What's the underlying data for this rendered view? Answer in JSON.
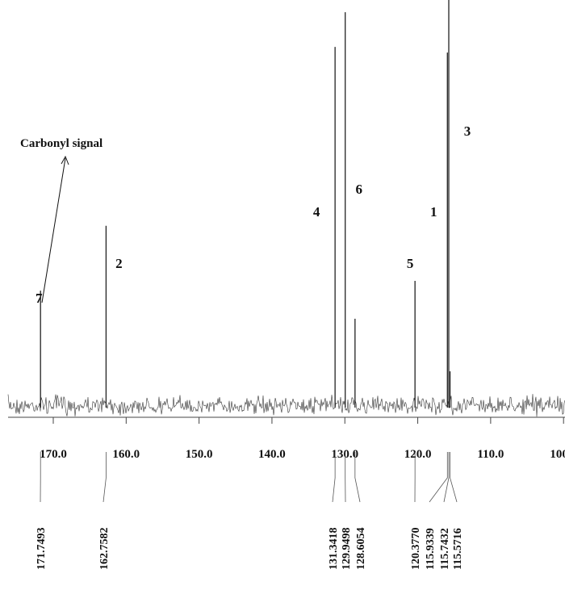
{
  "chart_data": {
    "type": "spectrum",
    "annotation": "Carbonyl signal",
    "x": [
      171.7493,
      162.7582,
      131.3418,
      129.9498,
      128.6054,
      {
        "value": 120.377,
        "label": "120.3770"
      },
      115.9339,
      115.7432,
      115.5716
    ],
    "values": [
      28.7,
      44.6,
      88.5,
      97,
      21.8,
      31.1,
      87.1,
      100,
      8.9
    ],
    "peak_numbers": [
      "7",
      "2",
      "4",
      "6",
      null,
      "5",
      "1",
      "3",
      null
    ],
    "color": "#222222",
    "xlim": [
      176.2,
      99.8
    ],
    "xticks": [
      {
        "value": 170,
        "label": "170.0"
      },
      {
        "value": 160,
        "label": "160.0"
      },
      {
        "value": 150,
        "label": "150.0"
      },
      {
        "value": 140,
        "label": "140.0"
      },
      {
        "value": 130,
        "label": "130.0"
      },
      {
        "value": 120,
        "label": "120.0"
      },
      {
        "value": 110,
        "label": "110.0"
      },
      {
        "value": 100,
        "label": "100.0"
      }
    ],
    "ylim": [
      0,
      100
    ]
  }
}
